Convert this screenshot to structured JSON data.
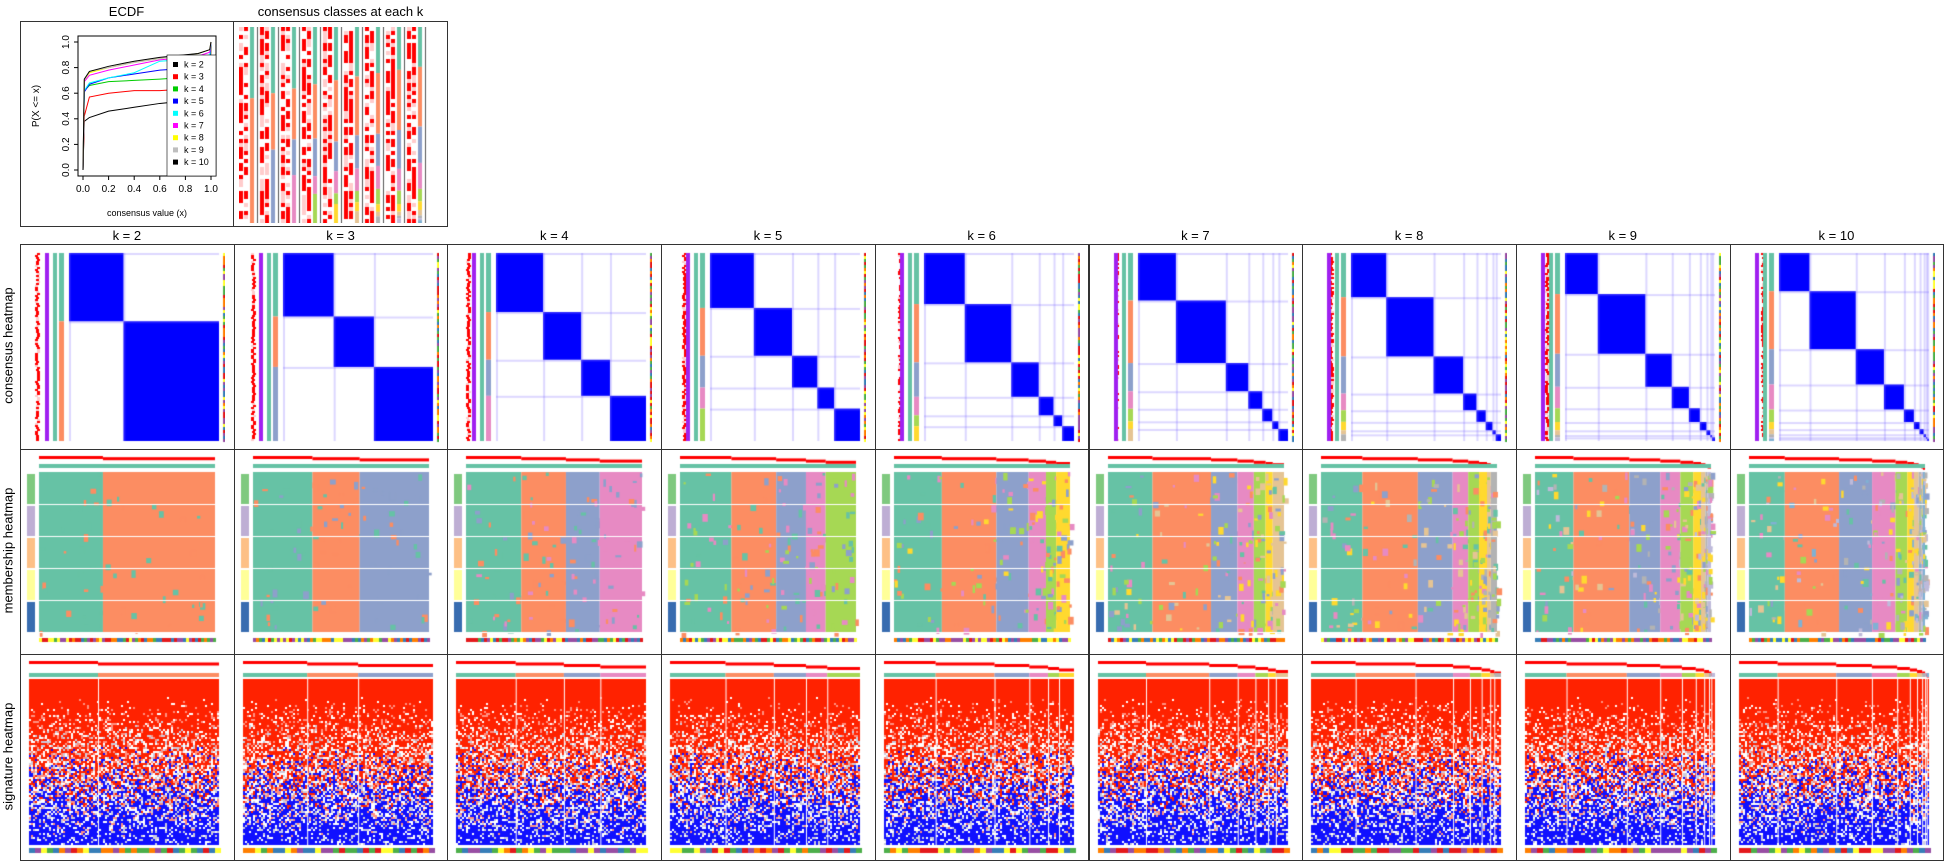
{
  "ecdf_panel_title": "ECDF",
  "classes_panel_title": "consensus classes at each k",
  "row_labels": {
    "consensus": "consensus heatmap",
    "membership": "membership heatmap",
    "signature": "signature heatmap"
  },
  "panel_titles": [
    "k = 2",
    "k = 3",
    "k = 4",
    "k = 5",
    "k = 6",
    "k = 7",
    "k = 8",
    "k = 9",
    "k = 10"
  ],
  "class_colors": [
    "#66C2A5",
    "#FC8D62",
    "#8DA0CB",
    "#E78AC3",
    "#A6D854",
    "#FFD92F",
    "#E5C494",
    "#B3B3B3",
    "#BEBADA",
    "#80B1D3"
  ],
  "heat_colors": {
    "consensus_high": "#0000FF",
    "low": "#FFFFFF",
    "signature_high": "#FF0000",
    "signature_low": "#0000FF",
    "silhouette": "#FF0000"
  },
  "chart_data": {
    "type": "line",
    "title": "ECDF",
    "xlabel": "consensus value (x)",
    "ylabel": "P(X <= x)",
    "xlim": [
      0,
      1
    ],
    "ylim": [
      0,
      1
    ],
    "xticks": [
      "0.0",
      "0.2",
      "0.4",
      "0.6",
      "0.8",
      "1.0"
    ],
    "yticks": [
      "0.0",
      "0.2",
      "0.4",
      "0.6",
      "0.8",
      "1.0"
    ],
    "legend_position": "bottom-right",
    "x": [
      0,
      0.01,
      0.05,
      0.2,
      0.4,
      0.6,
      0.9,
      0.99,
      1
    ],
    "series": [
      {
        "name": "k = 2",
        "color": "#000000",
        "values": [
          0,
          0.38,
          0.41,
          0.46,
          0.49,
          0.52,
          0.55,
          0.6,
          1
        ]
      },
      {
        "name": "k = 3",
        "color": "#FF0000",
        "values": [
          0,
          0.42,
          0.57,
          0.6,
          0.62,
          0.62,
          0.64,
          0.66,
          1
        ]
      },
      {
        "name": "k = 4",
        "color": "#00CC00",
        "values": [
          0,
          0.62,
          0.66,
          0.69,
          0.7,
          0.71,
          0.73,
          0.75,
          1
        ]
      },
      {
        "name": "k = 5",
        "color": "#0000FF",
        "values": [
          0,
          0.61,
          0.67,
          0.72,
          0.75,
          0.78,
          0.8,
          0.85,
          1
        ]
      },
      {
        "name": "k = 6",
        "color": "#00FFFF",
        "values": [
          0,
          0.62,
          0.68,
          0.72,
          0.76,
          0.85,
          0.87,
          0.9,
          1
        ]
      },
      {
        "name": "k = 7",
        "color": "#FF00FF",
        "values": [
          0,
          0.69,
          0.74,
          0.78,
          0.82,
          0.86,
          0.89,
          0.92,
          1
        ]
      },
      {
        "name": "k = 8",
        "color": "#FFFF00",
        "values": [
          0,
          0.7,
          0.76,
          0.8,
          0.84,
          0.87,
          0.91,
          0.94,
          1
        ]
      },
      {
        "name": "k = 9",
        "color": "#BEBEBE",
        "values": [
          0,
          0.7,
          0.77,
          0.8,
          0.84,
          0.87,
          0.91,
          0.94,
          1
        ]
      },
      {
        "name": "k = 10",
        "color": "#000000",
        "values": [
          0,
          0.71,
          0.77,
          0.81,
          0.85,
          0.88,
          0.91,
          0.94,
          1
        ]
      }
    ]
  }
}
